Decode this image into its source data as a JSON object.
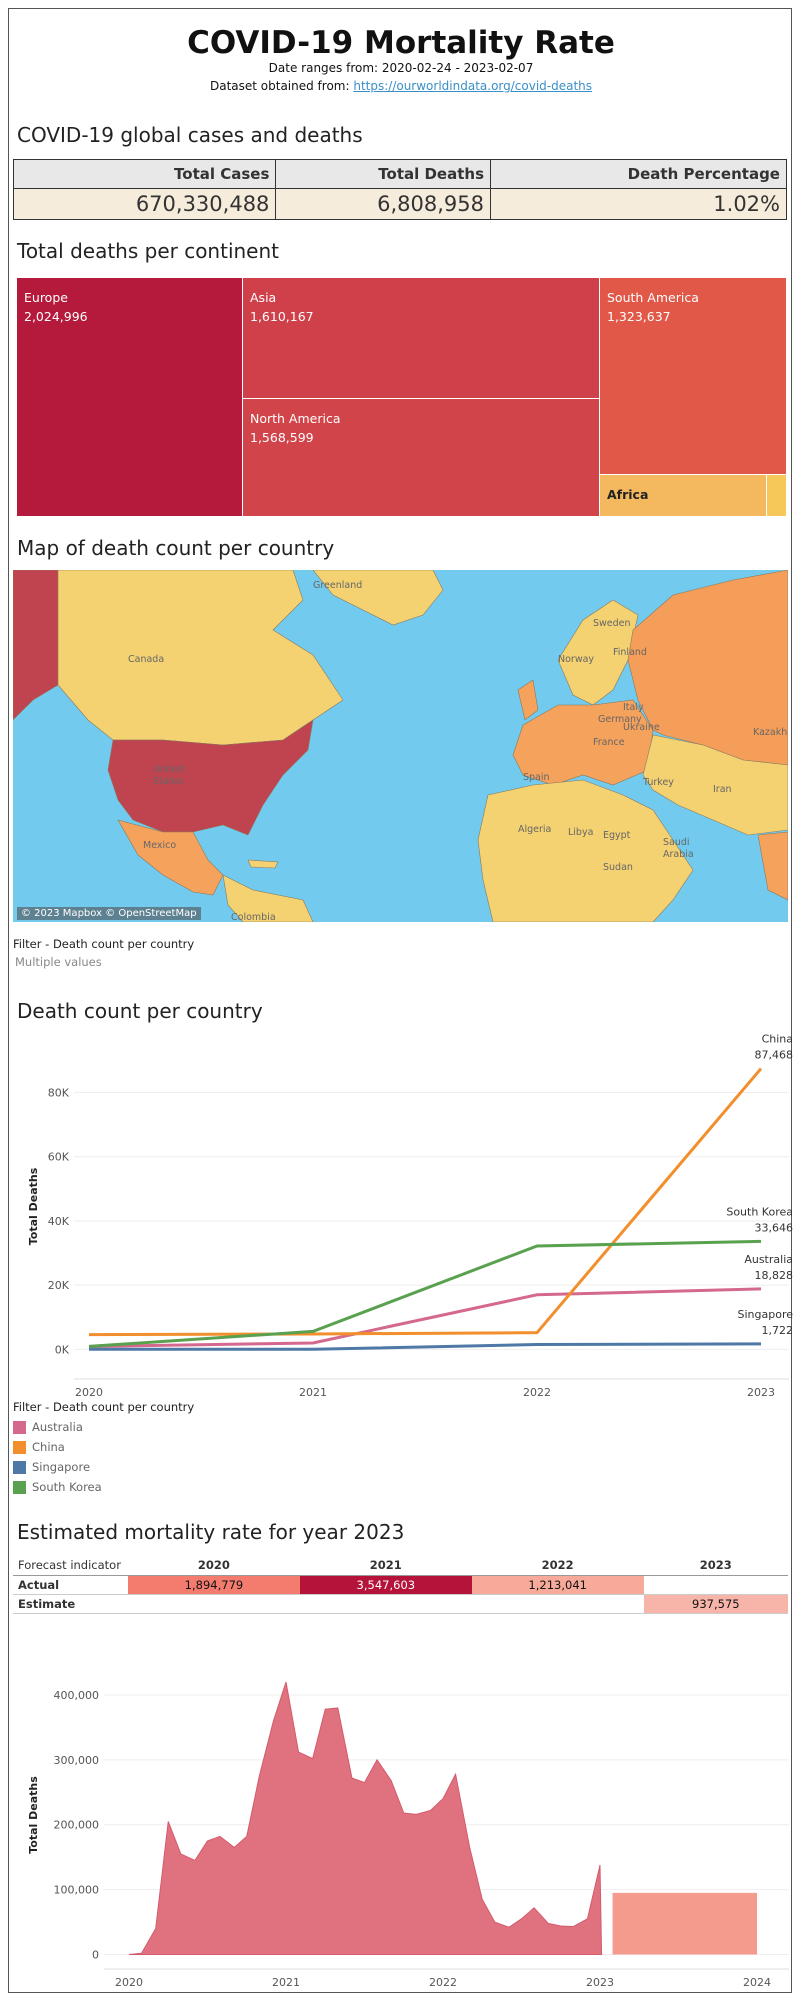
{
  "header": {
    "title": "COVID-19 Mortality Rate",
    "date_range": "Date ranges from: 2020-02-24 - 2023-02-07",
    "source_prefix": "Dataset obtained from: ",
    "source_link": "https://ourworldindata.org/covid-deaths"
  },
  "kpi": {
    "section_title": "COVID-19 global cases and deaths",
    "headers": [
      "Total Cases",
      "Total Deaths",
      "Death Percentage"
    ],
    "values": [
      "670,330,488",
      "6,808,958",
      "1.02%"
    ]
  },
  "treemap": {
    "section_title": "Total deaths per continent",
    "cells": [
      {
        "name": "Europe",
        "value": "2,024,996",
        "color": "#b5193c"
      },
      {
        "name": "Asia",
        "value": "1,610,167",
        "color": "#cf404a"
      },
      {
        "name": "North America",
        "value": "1,568,599",
        "color": "#d1444a"
      },
      {
        "name": "South America",
        "value": "1,323,637",
        "color": "#e15848"
      },
      {
        "name": "Africa",
        "value": "",
        "color": "#f4b95f"
      }
    ]
  },
  "map": {
    "section_title": "Map of death count per country",
    "attribution": "© 2023 Mapbox © OpenStreetMap",
    "labels": [
      "Greenland",
      "Canada",
      "United States",
      "Mexico",
      "Colombia",
      "Sweden",
      "Norway",
      "Germany",
      "France",
      "Spain",
      "Ukraine",
      "Turkey",
      "Iran",
      "Kazakhst",
      "Algeria",
      "Libya",
      "Egypt",
      "Saudi Arabia",
      "Sudan",
      "Finland",
      "Italy"
    ],
    "colors": {
      "ocean": "#72cbef",
      "land": "#f4d272",
      "medium": "#f5a25d",
      "high": "#c0444f"
    }
  },
  "map_filter": {
    "title": "Filter - Death count per country",
    "value": "Multiple values"
  },
  "line_section": {
    "section_title": "Death count per country",
    "legend_title": "Filter - Death count per country"
  },
  "chart_data": [
    {
      "type": "line",
      "title": "",
      "xlabel": "",
      "ylabel": "Total Deaths",
      "x": [
        "2020",
        "2021",
        "2022",
        "2023"
      ],
      "ylim": [
        -3000,
        92000
      ],
      "y_ticks": [
        "0K",
        "20K",
        "40K",
        "60K",
        "80K"
      ],
      "grid": true,
      "legend": "bottom-left",
      "series": [
        {
          "name": "Australia",
          "color": "#d4698d",
          "values": [
            909,
            2000,
            17000,
            18828
          ],
          "end_label": "18,828"
        },
        {
          "name": "China",
          "color": "#f28e2b",
          "values": [
            4600,
            4800,
            5200,
            87468
          ],
          "end_label": "87,468"
        },
        {
          "name": "Singapore",
          "color": "#4e79a7",
          "values": [
            26,
            29,
            1500,
            1722
          ],
          "end_label": "1,722"
        },
        {
          "name": "South Korea",
          "color": "#59a14f",
          "values": [
            917,
            5600,
            32200,
            33646
          ],
          "end_label": "33,646"
        }
      ]
    },
    {
      "type": "table",
      "title": "Estimated mortality rate for year 2023",
      "corner_label": "Forecast indicator",
      "columns": [
        "2020",
        "2021",
        "2022",
        "2023"
      ],
      "rows": [
        {
          "label": "Actual",
          "values": [
            "1,894,779",
            "3,547,603",
            "1,213,041",
            ""
          ],
          "colors": [
            "#f47c6e",
            "#b5133a",
            "#f7aa9a",
            "#ffffff"
          ],
          "text_colors": [
            "#111",
            "#fff",
            "#111",
            "#111"
          ]
        },
        {
          "label": "Estimate",
          "values": [
            "",
            "",
            "",
            "937,575"
          ],
          "colors": [
            "#ffffff",
            "#ffffff",
            "#ffffff",
            "#f7b5aa"
          ],
          "text_colors": [
            "#111",
            "#111",
            "#111",
            "#111"
          ]
        }
      ]
    },
    {
      "type": "area",
      "title": "",
      "xlabel": "",
      "ylabel": "Total Deaths",
      "ylim": [
        -10000,
        440000
      ],
      "y_ticks": [
        "0",
        "100,000",
        "200,000",
        "300,000",
        "400,000"
      ],
      "x_ticks": [
        "2020",
        "2021",
        "2022",
        "2023",
        "2024"
      ],
      "grid": true,
      "area_color": "#e07280",
      "estimate_color": "#f49b8e",
      "actual": [
        {
          "t": 2020.0,
          "y": 0
        },
        {
          "t": 2020.08,
          "y": 2000
        },
        {
          "t": 2020.17,
          "y": 40000
        },
        {
          "t": 2020.25,
          "y": 205000
        },
        {
          "t": 2020.33,
          "y": 155000
        },
        {
          "t": 2020.42,
          "y": 145000
        },
        {
          "t": 2020.5,
          "y": 175000
        },
        {
          "t": 2020.58,
          "y": 182000
        },
        {
          "t": 2020.67,
          "y": 165000
        },
        {
          "t": 2020.75,
          "y": 182000
        },
        {
          "t": 2020.83,
          "y": 275000
        },
        {
          "t": 2020.92,
          "y": 360000
        },
        {
          "t": 2021.0,
          "y": 420000
        },
        {
          "t": 2021.08,
          "y": 312000
        },
        {
          "t": 2021.17,
          "y": 302000
        },
        {
          "t": 2021.25,
          "y": 378000
        },
        {
          "t": 2021.33,
          "y": 380000
        },
        {
          "t": 2021.42,
          "y": 272000
        },
        {
          "t": 2021.5,
          "y": 265000
        },
        {
          "t": 2021.58,
          "y": 300000
        },
        {
          "t": 2021.67,
          "y": 268000
        },
        {
          "t": 2021.75,
          "y": 218000
        },
        {
          "t": 2021.83,
          "y": 216000
        },
        {
          "t": 2021.92,
          "y": 222000
        },
        {
          "t": 2022.0,
          "y": 240000
        },
        {
          "t": 2022.08,
          "y": 278000
        },
        {
          "t": 2022.17,
          "y": 165000
        },
        {
          "t": 2022.25,
          "y": 85000
        },
        {
          "t": 2022.33,
          "y": 50000
        },
        {
          "t": 2022.42,
          "y": 42000
        },
        {
          "t": 2022.5,
          "y": 55000
        },
        {
          "t": 2022.58,
          "y": 72000
        },
        {
          "t": 2022.67,
          "y": 48000
        },
        {
          "t": 2022.75,
          "y": 44000
        },
        {
          "t": 2022.83,
          "y": 43000
        },
        {
          "t": 2022.92,
          "y": 55000
        },
        {
          "t": 2023.0,
          "y": 138000
        },
        {
          "t": 2023.01,
          "y": 0
        }
      ],
      "estimate": {
        "t_start": 2023.08,
        "t_end": 2024.0,
        "y": 95000
      }
    }
  ]
}
